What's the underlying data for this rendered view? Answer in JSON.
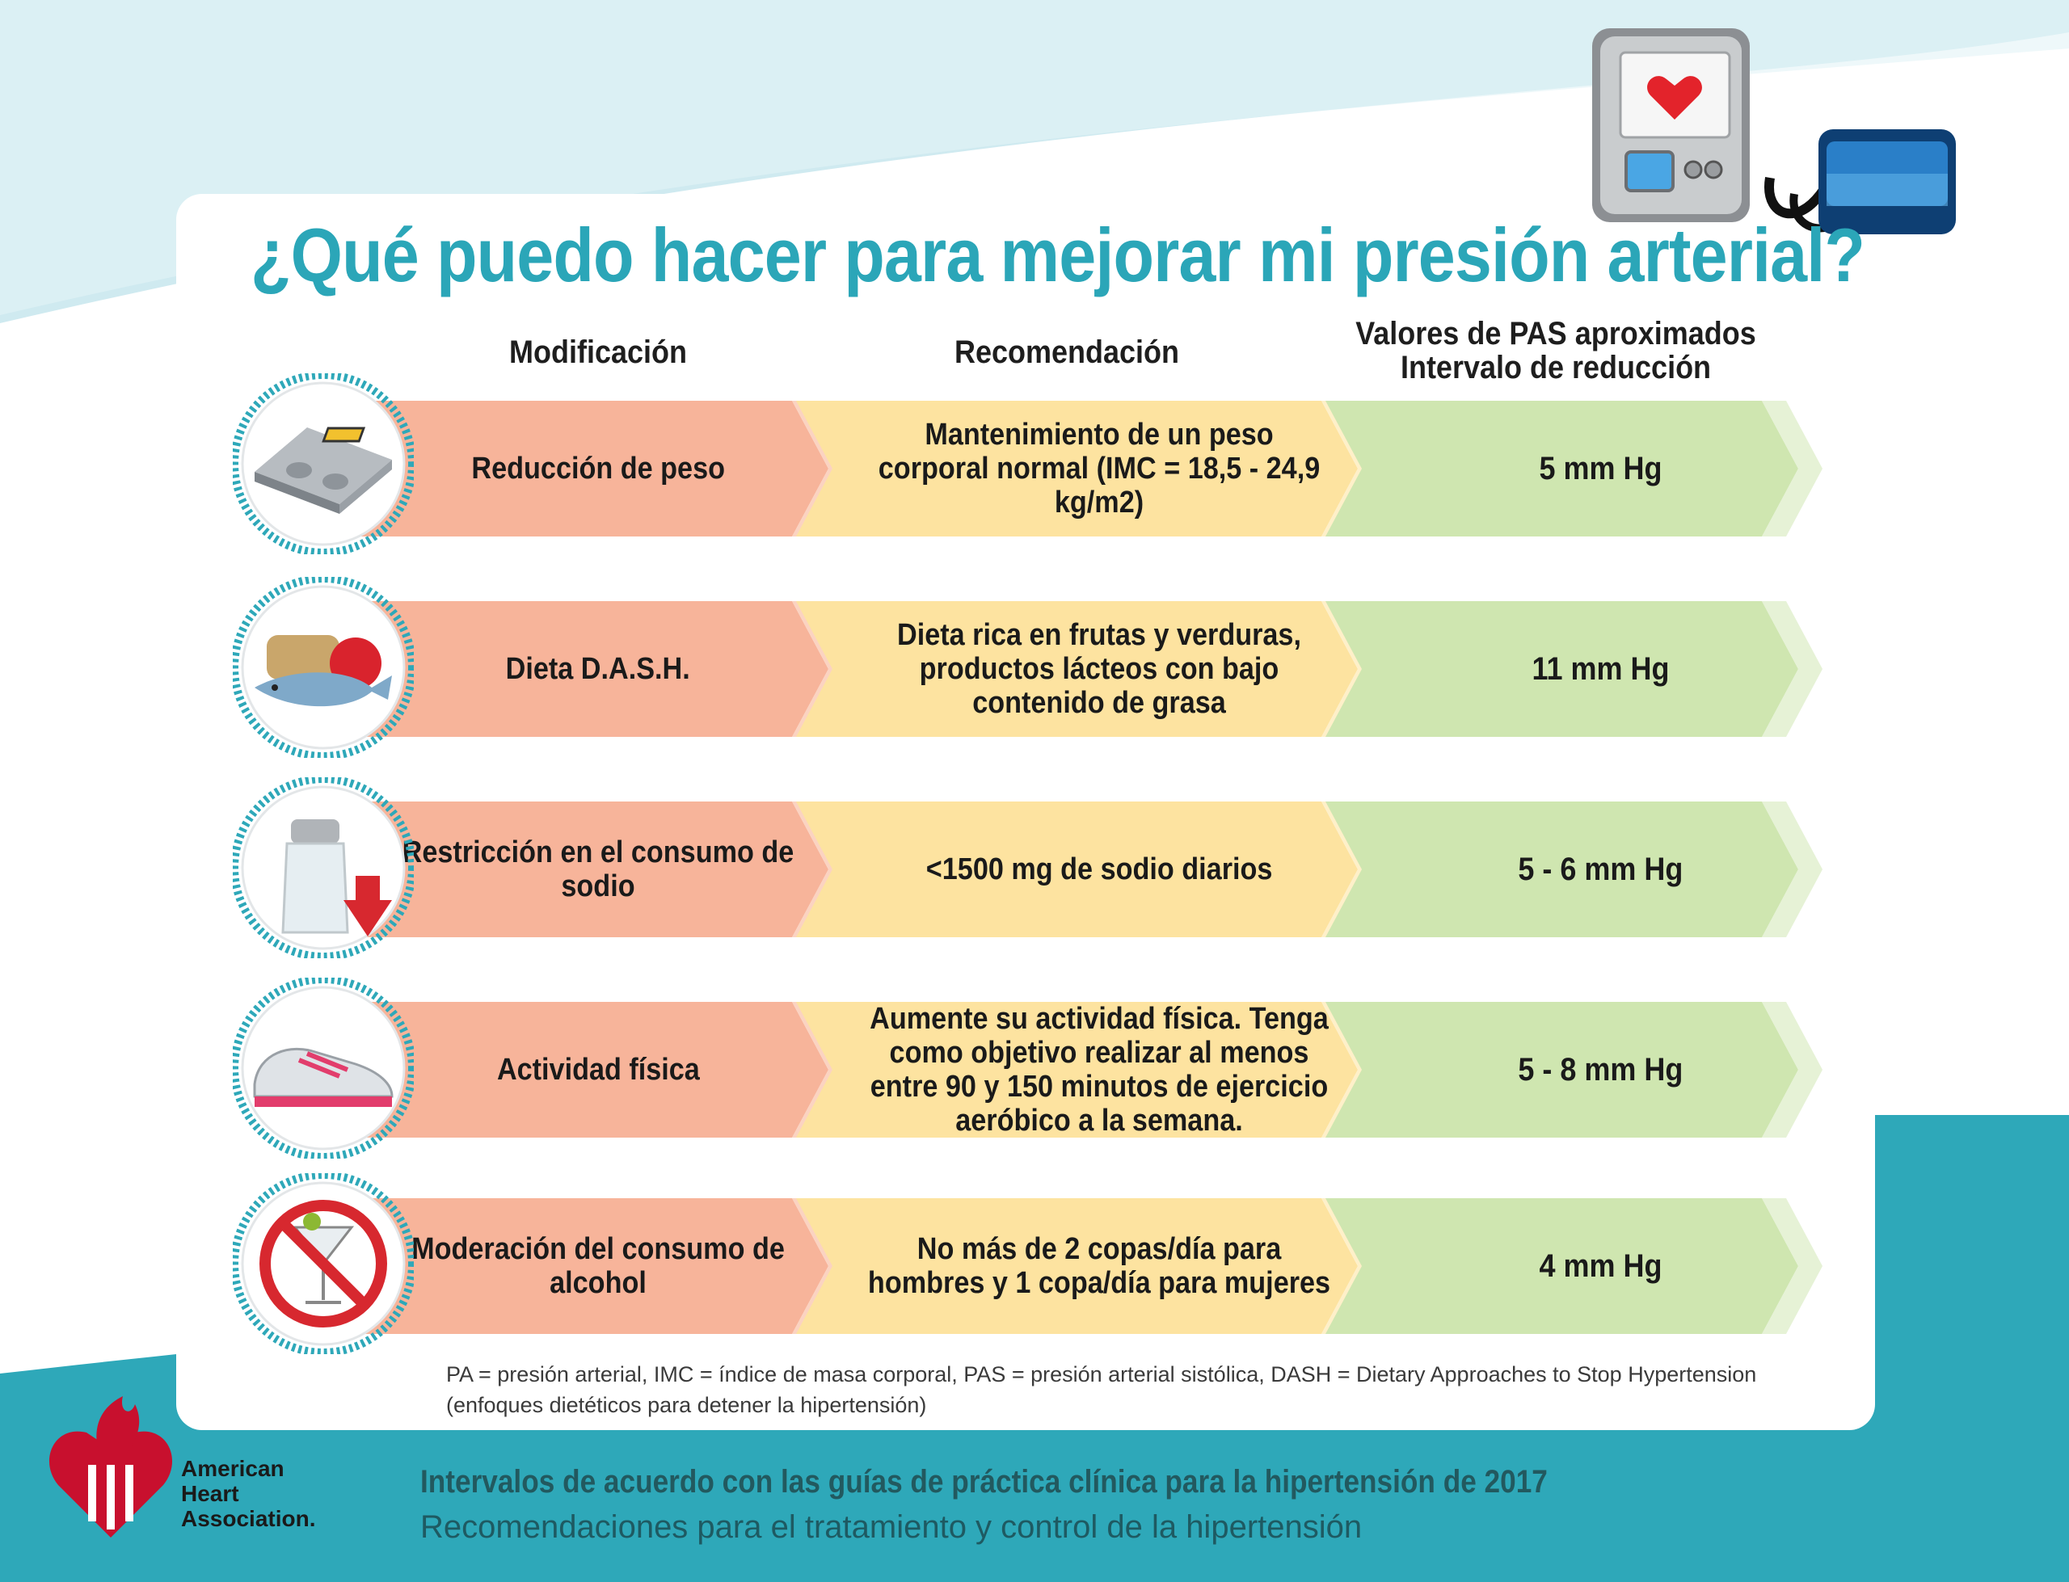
{
  "title": "¿Qué puedo hacer para mejorar mi presión arterial?",
  "headers": {
    "modification": "Modificación",
    "recommendation": "Recomendación",
    "values_line1": "Valores de PAS aproximados",
    "values_line2": "Intervalo de reducción"
  },
  "rows": [
    {
      "icon": "bathroom-scale-icon",
      "modification": "Reducción de peso",
      "recommendation": "Mantenimiento de un peso corporal normal (IMC = 18,5 - 24,9 kg/m2)",
      "reduction": "5 mm Hg"
    },
    {
      "icon": "healthy-food-icon",
      "modification": "Dieta D.A.S.H.",
      "recommendation": "Dieta rica en frutas y verduras, productos lácteos con bajo contenido de grasa",
      "reduction": "11 mm Hg"
    },
    {
      "icon": "salt-shaker-icon",
      "modification": "Restricción en el consumo de sodio",
      "recommendation": "<1500 mg de sodio diarios",
      "reduction": "5 - 6 mm Hg"
    },
    {
      "icon": "sneaker-icon",
      "modification": "Actividad física",
      "recommendation": "Aumente su actividad física. Tenga como objetivo realizar al menos entre 90 y 150 minutos de ejercicio aeróbico a la semana.",
      "reduction": "5 - 8 mm Hg"
    },
    {
      "icon": "no-alcohol-icon",
      "modification": "Moderación del consumo de alcohol",
      "recommendation": "No más de 2 copas/día para hombres y 1 copa/día para mujeres",
      "reduction": "4 mm Hg"
    }
  ],
  "footnote": "PA = presión arterial, IMC = índice de masa corporal, PAS = presión arterial sistólica, DASH = Dietary Approaches to Stop Hypertension (enfoques dietéticos para detener la hipertensión)",
  "logo": {
    "line1": "American",
    "line2": "Heart",
    "line3": "Association."
  },
  "footer_line1": "Intervalos de acuerdo con las guías de práctica clínica para la hipertensión de 2017",
  "footer_line2": "Recomendaciones para el tratamiento y control de la hipertensión",
  "colors": {
    "title": "#2ba6b8",
    "teal": "#2ea8b9",
    "salmon": "#f7b49a",
    "yellow": "#fde3a0",
    "green": "#cfe6b0"
  }
}
